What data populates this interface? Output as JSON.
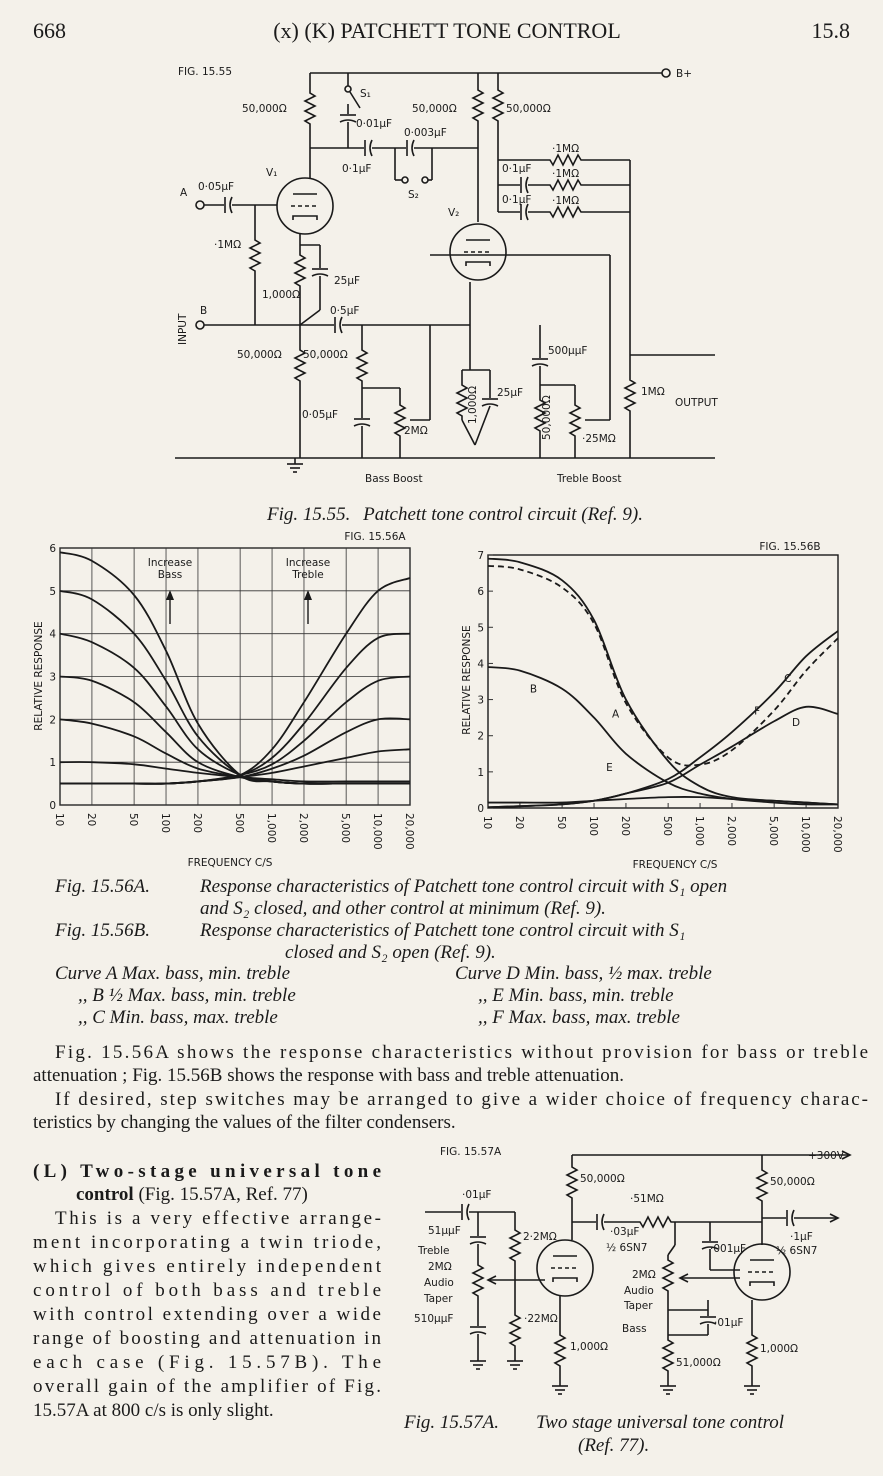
{
  "header": {
    "page": "668",
    "title": "(x) (K) PATCHETT TONE CONTROL",
    "section": "15.8"
  },
  "fig_15_55": {
    "label": "FIG. 15.55",
    "components": [
      "S₁",
      "50,000Ω",
      "0·01μF",
      "50,000Ω",
      "50,000Ω",
      "0·003μF",
      "0·1μF",
      "S₂",
      "V₁",
      "0·05μF",
      "A",
      "·1MΩ",
      "0·1μF",
      "·1MΩ",
      "0·1μF",
      "·1MΩ",
      "B+",
      "V₂",
      "·1MΩ",
      "1,000Ω",
      "25μF",
      "INPUT",
      "B",
      "0·5μF",
      "50,000Ω",
      "50,000Ω",
      "500μμF",
      "1MΩ",
      "OUTPUT",
      "0·05μF",
      "2MΩ",
      "1,000Ω",
      "25μF",
      "50,000Ω",
      "·25MΩ",
      "Bass Boost",
      "Treble Boost"
    ],
    "caption": {
      "number": "Fig. 15.55.",
      "text": "Patchett tone control circuit (Ref. 9)."
    }
  },
  "chart_data": [
    {
      "type": "line",
      "title": "FIG. 15.56A",
      "x_label": "FREQUENCY C/S",
      "y_label": "RELATIVE RESPONSE",
      "log_x": true,
      "grid": true,
      "x": [
        10,
        20,
        50,
        100,
        200,
        500,
        1000,
        2000,
        5000,
        10000,
        20000
      ],
      "xlim": [
        10,
        20000
      ],
      "xticks": [
        10,
        20,
        50,
        100,
        200,
        500,
        {
          "value": 1000,
          "label": "1,000"
        },
        {
          "value": 2000,
          "label": "2,000"
        },
        {
          "value": 5000,
          "label": "5,000"
        },
        {
          "value": 10000,
          "label": "10,000"
        },
        {
          "value": 20000,
          "label": "20,000"
        }
      ],
      "ylim": [
        0,
        6
      ],
      "yticks": [
        0,
        1,
        2,
        3,
        4,
        5,
        6
      ],
      "annotations": [
        [
          "Increase",
          "Bass"
        ],
        [
          "Increase",
          "Treble"
        ]
      ],
      "series": [
        {
          "color": "#1a1a1a",
          "values": [
            5.9,
            5.7,
            4.9,
            3.6,
            1.9,
            0.7,
            0.55,
            0.5,
            0.5,
            0.5,
            0.5
          ]
        },
        {
          "color": "#1a1a1a",
          "values": [
            5.0,
            4.8,
            4.0,
            2.9,
            1.6,
            0.7,
            0.55,
            0.5,
            0.5,
            0.5,
            0.5
          ]
        },
        {
          "color": "#1a1a1a",
          "values": [
            4.0,
            3.8,
            3.2,
            2.3,
            1.3,
            0.7,
            0.55,
            0.5,
            0.5,
            0.5,
            0.5
          ]
        },
        {
          "color": "#1a1a1a",
          "values": [
            3.0,
            2.9,
            2.4,
            1.7,
            1.0,
            0.65,
            0.55,
            0.5,
            0.5,
            0.5,
            0.5
          ]
        },
        {
          "color": "#1a1a1a",
          "values": [
            2.0,
            1.9,
            1.6,
            1.2,
            0.85,
            0.65,
            0.55,
            0.5,
            0.5,
            0.5,
            0.5
          ]
        },
        {
          "color": "#1a1a1a",
          "values": [
            1.0,
            1.0,
            0.95,
            0.85,
            0.75,
            0.65,
            0.6,
            0.55,
            0.55,
            0.55,
            0.55
          ]
        },
        {
          "color": "#1a1a1a",
          "values": [
            0.5,
            0.5,
            0.5,
            0.5,
            0.55,
            0.7,
            1.3,
            2.4,
            4.0,
            5.0,
            5.3
          ]
        },
        {
          "color": "#1a1a1a",
          "values": [
            0.5,
            0.5,
            0.5,
            0.5,
            0.55,
            0.7,
            1.1,
            1.9,
            3.2,
            3.9,
            4.0
          ]
        },
        {
          "color": "#1a1a1a",
          "values": [
            0.5,
            0.5,
            0.5,
            0.5,
            0.55,
            0.7,
            0.95,
            1.5,
            2.4,
            2.9,
            3.0
          ]
        },
        {
          "color": "#1a1a1a",
          "values": [
            0.5,
            0.5,
            0.5,
            0.5,
            0.55,
            0.65,
            0.85,
            1.15,
            1.7,
            2.0,
            2.0
          ]
        },
        {
          "color": "#1a1a1a",
          "values": [
            0.5,
            0.5,
            0.5,
            0.5,
            0.55,
            0.65,
            0.75,
            0.9,
            1.1,
            1.25,
            1.3
          ]
        }
      ]
    },
    {
      "type": "line",
      "title": "FIG. 15.56B",
      "x_label": "FREQUENCY C/S",
      "y_label": "RELATIVE RESPONSE",
      "log_x": true,
      "grid": false,
      "x": [
        10,
        20,
        50,
        100,
        200,
        500,
        1000,
        2000,
        5000,
        10000,
        20000
      ],
      "xlim": [
        10,
        20000
      ],
      "xticks": [
        10,
        20,
        50,
        100,
        200,
        500,
        {
          "value": 1000,
          "label": "1,000"
        },
        {
          "value": 2000,
          "label": "2,000"
        },
        {
          "value": 5000,
          "label": "5,000"
        },
        {
          "value": 10000,
          "label": "10,000"
        },
        {
          "value": 20000,
          "label": "20,000"
        }
      ],
      "ylim": [
        0,
        7
      ],
      "yticks": [
        0,
        1,
        2,
        3,
        4,
        5,
        6,
        7
      ],
      "series": [
        {
          "name": "A",
          "color": "#1a1a1a",
          "values": [
            6.9,
            6.8,
            6.3,
            5.2,
            3.0,
            1.3,
            0.6,
            0.3,
            0.2,
            0.15,
            0.1
          ]
        },
        {
          "name": "B",
          "color": "#1a1a1a",
          "values": [
            3.9,
            3.8,
            3.3,
            2.5,
            1.5,
            0.7,
            0.4,
            0.25,
            0.15,
            0.1,
            0.1
          ]
        },
        {
          "name": "C",
          "color": "#1a1a1a",
          "values": [
            0.02,
            0.05,
            0.1,
            0.2,
            0.4,
            0.8,
            1.4,
            2.1,
            3.2,
            4.2,
            4.9
          ]
        },
        {
          "name": "D",
          "color": "#1a1a1a",
          "values": [
            0.02,
            0.05,
            0.1,
            0.2,
            0.4,
            0.7,
            1.2,
            1.7,
            2.4,
            2.8,
            2.6
          ]
        },
        {
          "name": "E",
          "color": "#1a1a1a",
          "values": [
            0.15,
            0.15,
            0.15,
            0.2,
            0.25,
            0.3,
            0.3,
            0.25,
            0.2,
            0.15,
            0.1
          ]
        },
        {
          "name": "F",
          "color": "#1a1a1a",
          "style": "dashed",
          "values": [
            6.7,
            6.6,
            6.1,
            5.1,
            2.9,
            1.4,
            1.2,
            1.6,
            2.7,
            3.8,
            4.7
          ]
        }
      ]
    }
  ],
  "captions_15_56": {
    "a_number": "Fig. 15.56A.",
    "a_lines": [
      "Response characteristics of Patchett tone control circuit with S₁ open",
      "and S₂ closed, and other control at minimum (Ref. 9)."
    ],
    "b_number": "Fig. 15.56B.",
    "b_lines": [
      "Response characteristics of Patchett tone control circuit with S₁",
      "closed and S₂ open (Ref. 9)."
    ],
    "curves": [
      [
        "Curve A Max. bass, min. treble",
        "Curve D Min. bass, ½ max. treble"
      ],
      [
        ",,   B ½ Max. bass, min. treble",
        ",,   E Min. bass, min. treble"
      ],
      [
        ",,   C Min. bass, max. treble",
        ",,   F Max. bass, max. treble"
      ]
    ]
  },
  "body": {
    "paragraphs": [
      [
        "Fig. 15.56A shows the response characteristics without provision for bass or treble",
        "attenuation ; Fig. 15.56B shows the response with bass and treble attenuation."
      ],
      [
        "If desired, step switches may be arranged to give a wider choice of frequency charac-",
        "teristics by changing the values of the filter condensers."
      ]
    ]
  },
  "section_l": {
    "heading": "(L) Two-stage universal tone",
    "heading_2": "control",
    "heading_ref": "(Fig. 15.57A, Ref. 77)",
    "lines": [
      "This is a very effective arrange-",
      "ment incorporating a twin triode,",
      "which gives entirely independent",
      "control of both bass and treble",
      "with control extending over a wide",
      "range of boosting and attenuation in",
      "each case (Fig. 15.57B). The",
      "overall gain of the amplifier of Fig.",
      "15.57A at 800 c/s is only slight."
    ]
  },
  "fig_15_57a": {
    "label": "FIG. 15.57A",
    "components": [
      "+300V",
      "50,000Ω",
      "50,000Ω",
      "·01μF",
      "·51MΩ",
      "51μμF",
      "2·2MΩ",
      "·03μF",
      "½ 6SN7",
      "·001μF",
      "½ 6SN7",
      "·1μF",
      "Treble",
      "2MΩ",
      "Audio",
      "Taper",
      "510μμF",
      "·22MΩ",
      "1,000Ω",
      "2MΩ",
      "Audio",
      "Taper",
      "Bass",
      "·01μF",
      "51,000Ω",
      "1,000Ω"
    ],
    "caption": {
      "number": "Fig. 15.57A.",
      "line_1": "Two stage universal tone control",
      "line_2": "(Ref. 77)."
    }
  }
}
